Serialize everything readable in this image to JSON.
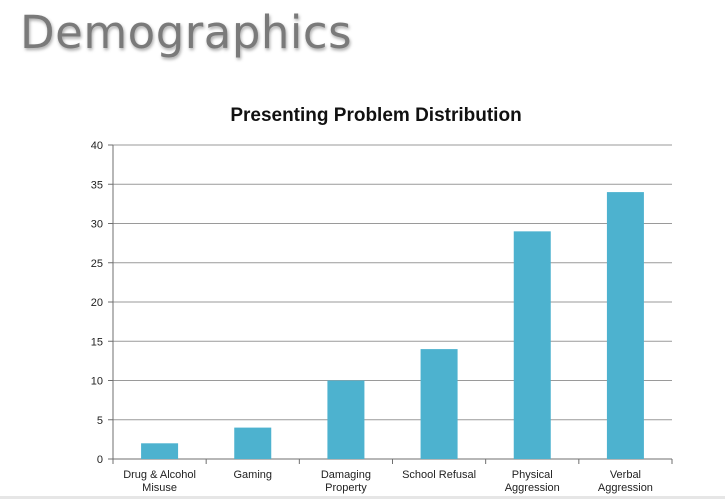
{
  "slide": {
    "title": "Demographics"
  },
  "chart_data": {
    "type": "bar",
    "title": "Presenting Problem Distribution",
    "categories": [
      [
        "Drug & Alcohol",
        "Misuse"
      ],
      [
        "Gaming"
      ],
      [
        "Damaging",
        "Property"
      ],
      [
        "School Refusal"
      ],
      [
        "Physical",
        "Aggression"
      ],
      [
        "Verbal",
        "Aggression"
      ]
    ],
    "values": [
      2,
      4,
      10,
      14,
      29,
      34
    ],
    "ylim": [
      0,
      40
    ],
    "yticks": [
      0,
      5,
      10,
      15,
      20,
      25,
      30,
      35,
      40
    ],
    "xlabel": "",
    "ylabel": "",
    "grid": true,
    "bar_color": "#4db2cf",
    "legend": "none"
  }
}
